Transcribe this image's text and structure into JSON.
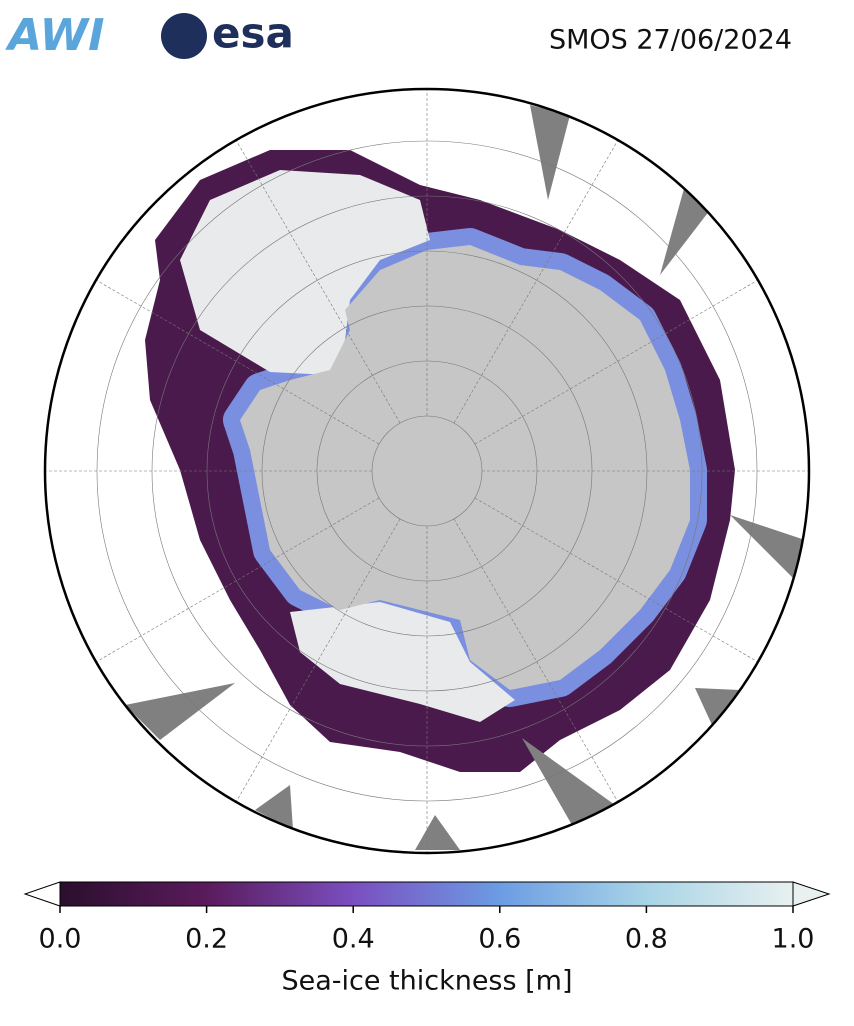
{
  "header": {
    "logos": [
      "AWI",
      "esa"
    ],
    "title": "SMOS 27/06/2024"
  },
  "colorbar": {
    "label": "Sea-ice thickness [m]",
    "lim": [
      0,
      1
    ],
    "ticks": [
      {
        "value": 0,
        "label": "0.0"
      },
      {
        "value": 0.2,
        "label": "0.2"
      },
      {
        "value": 0.4,
        "label": "0.4"
      },
      {
        "value": 0.6,
        "label": "0.6"
      },
      {
        "value": 0.8,
        "label": "0.8"
      },
      {
        "value": 1,
        "label": "1.0"
      }
    ],
    "colors": [
      "#2a0f2c",
      "#5a1b5c",
      "#7a4fc0",
      "#6c9ce4",
      "#a8d4e6",
      "#e8f0f0"
    ]
  }
}
